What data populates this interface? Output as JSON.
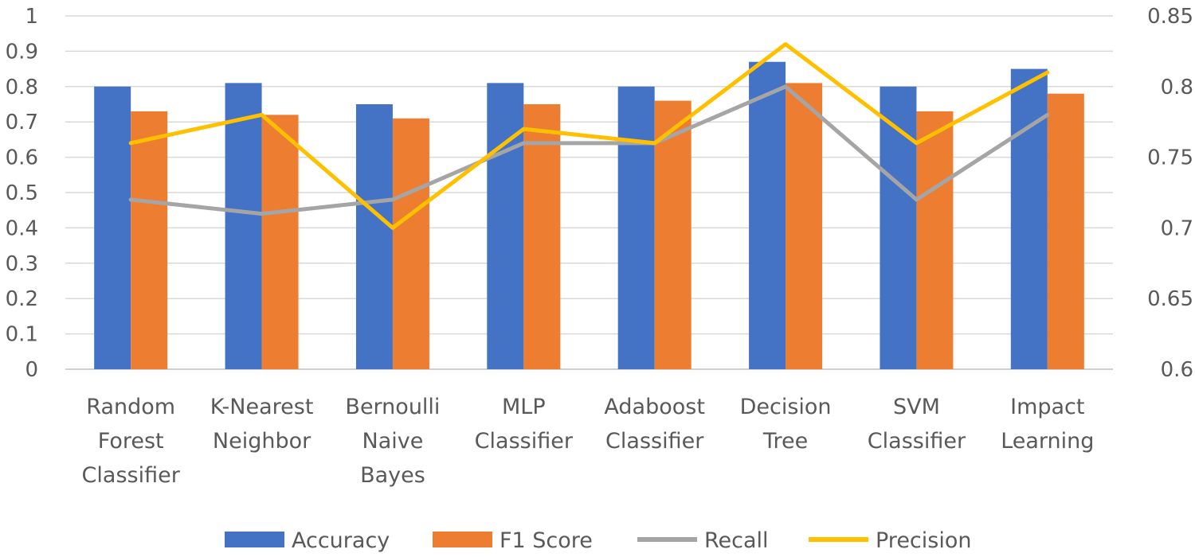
{
  "chart_data": {
    "type": "bar",
    "categories": [
      [
        "Random",
        "Forest",
        "Classifier"
      ],
      [
        "K-Nearest",
        "Neighbor"
      ],
      [
        "Bernoulli",
        "Naive",
        "Bayes"
      ],
      [
        "MLP",
        "Classifier"
      ],
      [
        "Adaboost",
        "Classifier"
      ],
      [
        "Decision",
        "Tree"
      ],
      [
        "SVM",
        "Classifier"
      ],
      [
        "Impact",
        "Learning"
      ]
    ],
    "y_left": {
      "ylim": [
        0,
        1
      ],
      "ticks": [
        "0",
        "0.1",
        "0.2",
        "0.3",
        "0.4",
        "0.5",
        "0.6",
        "0.7",
        "0.8",
        "0.9",
        "1"
      ]
    },
    "y_right": {
      "ylim": [
        0.6,
        0.85
      ],
      "ticks": [
        "0.6",
        "0.65",
        "0.7",
        "0.75",
        "0.8",
        "0.85"
      ]
    },
    "grid": true,
    "legend_position": "bottom",
    "series": [
      {
        "name": "Accuracy",
        "type": "bar",
        "axis": "left",
        "color": "#4472C4",
        "values": [
          0.8,
          0.81,
          0.75,
          0.81,
          0.8,
          0.87,
          0.8,
          0.85
        ]
      },
      {
        "name": "F1 Score",
        "type": "bar",
        "axis": "left",
        "color": "#ED7D31",
        "values": [
          0.73,
          0.72,
          0.71,
          0.75,
          0.76,
          0.81,
          0.73,
          0.78
        ]
      },
      {
        "name": "Recall",
        "type": "line",
        "axis": "right",
        "color": "#A5A5A5",
        "values": [
          0.72,
          0.71,
          0.72,
          0.76,
          0.76,
          0.8,
          0.72,
          0.78
        ]
      },
      {
        "name": "Precision",
        "type": "line",
        "axis": "right",
        "color": "#FFC000",
        "values": [
          0.76,
          0.78,
          0.7,
          0.77,
          0.76,
          0.83,
          0.76,
          0.81
        ]
      }
    ]
  }
}
